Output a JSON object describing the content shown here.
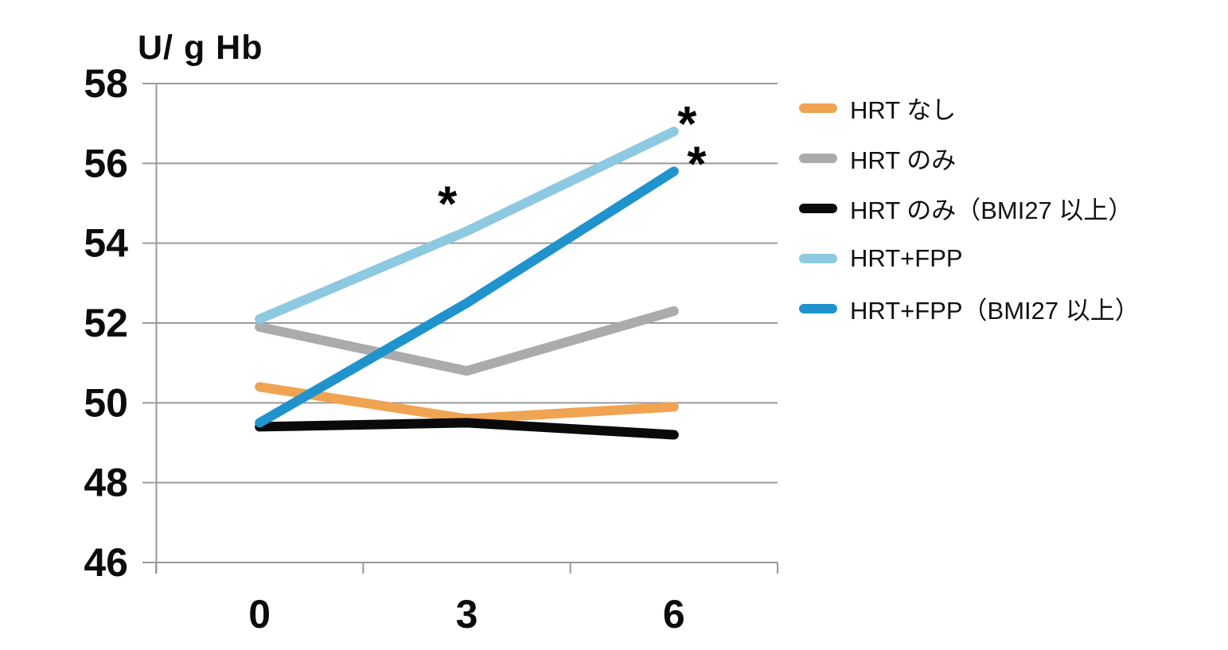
{
  "chart_data": {
    "type": "line",
    "title": "U/ g Hb",
    "x": [
      0,
      3,
      6
    ],
    "x_tick_labels": [
      "0",
      "3",
      "6"
    ],
    "y_ticks": [
      46,
      48,
      50,
      52,
      54,
      56,
      58
    ],
    "ylim": [
      46,
      58
    ],
    "xlabel": "",
    "ylabel": "U/ g Hb",
    "grid": "horizontal",
    "legend_position": "right",
    "series": [
      {
        "name": "HRT なし",
        "color": "#F0A351",
        "values": [
          50.4,
          49.6,
          49.9
        ]
      },
      {
        "name": "HRT のみ",
        "color": "#ABABAB",
        "values": [
          51.9,
          50.8,
          52.3
        ]
      },
      {
        "name": "HRT のみ（BMI27 以上）",
        "color": "#0A0A0A",
        "values": [
          49.4,
          49.5,
          49.2
        ]
      },
      {
        "name": "HRT+FPP",
        "color": "#8DC9E1",
        "values": [
          52.1,
          54.3,
          56.8
        ]
      },
      {
        "name": "HRT+FPP（BMI27 以上）",
        "color": "#2093CC",
        "values": [
          49.5,
          52.5,
          55.8
        ]
      }
    ],
    "annotations": [
      {
        "text": "*",
        "month": 2.72,
        "value": 55.0
      },
      {
        "text": "*",
        "month": 6.19,
        "value": 57.0
      },
      {
        "text": "*",
        "month": 6.33,
        "value": 56.0
      }
    ]
  },
  "colors": {
    "grid": "#9a9a9a",
    "axis": "#9a9a9a",
    "tick_text": "#0c0c0c",
    "annotation": "#000000"
  }
}
